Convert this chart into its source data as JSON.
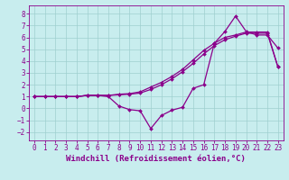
{
  "xlabel": "Windchill (Refroidissement éolien,°C)",
  "xlim": [
    -0.5,
    23.5
  ],
  "ylim": [
    -2.7,
    8.7
  ],
  "xticks": [
    0,
    1,
    2,
    3,
    4,
    5,
    6,
    7,
    8,
    9,
    10,
    11,
    12,
    13,
    14,
    15,
    16,
    17,
    18,
    19,
    20,
    21,
    22,
    23
  ],
  "yticks": [
    -2,
    -1,
    0,
    1,
    2,
    3,
    4,
    5,
    6,
    7,
    8
  ],
  "background_color": "#c8edee",
  "grid_color": "#9fcfcf",
  "line_color": "#8b008b",
  "lineA_x": [
    0,
    1,
    2,
    3,
    4,
    5,
    6,
    7,
    8,
    9,
    10,
    11,
    12,
    13,
    14,
    15,
    16,
    17,
    18,
    19,
    20,
    21,
    22,
    23
  ],
  "lineA_y": [
    1.0,
    1.0,
    1.0,
    1.0,
    1.0,
    1.1,
    1.1,
    1.1,
    1.15,
    1.2,
    1.3,
    1.6,
    2.0,
    2.5,
    3.1,
    3.8,
    4.6,
    5.3,
    5.8,
    6.1,
    6.35,
    6.35,
    6.35,
    3.5
  ],
  "lineB_x": [
    0,
    1,
    2,
    3,
    4,
    5,
    6,
    7,
    8,
    9,
    10,
    11,
    12,
    13,
    14,
    15,
    16,
    17,
    18,
    19,
    20,
    21,
    22,
    23
  ],
  "lineB_y": [
    1.0,
    1.0,
    1.0,
    1.0,
    1.0,
    1.1,
    1.1,
    1.1,
    1.2,
    1.25,
    1.4,
    1.8,
    2.2,
    2.7,
    3.3,
    4.1,
    4.9,
    5.5,
    6.0,
    6.2,
    6.45,
    6.45,
    6.45,
    3.5
  ],
  "lineC_x": [
    0,
    1,
    2,
    3,
    4,
    5,
    6,
    7,
    8,
    9,
    10,
    11,
    12,
    13,
    14,
    15,
    16,
    17,
    18,
    19,
    20,
    21,
    22,
    23
  ],
  "lineC_y": [
    1.0,
    1.0,
    1.0,
    1.0,
    1.0,
    1.1,
    1.1,
    1.0,
    0.2,
    -0.1,
    -0.2,
    -1.7,
    -0.6,
    -0.15,
    0.1,
    1.7,
    2.0,
    5.5,
    6.5,
    7.8,
    6.5,
    6.2,
    6.2,
    5.1
  ],
  "font_size_xlabel": 6.5,
  "font_size_ticks": 5.5,
  "marker": "D",
  "marker_size": 2.0,
  "line_width": 0.9
}
